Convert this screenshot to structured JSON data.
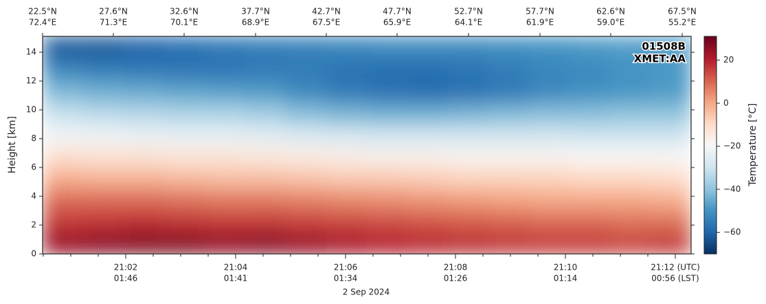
{
  "chart_data": {
    "type": "heatmap",
    "ylabel": "Height [km]",
    "xlabel": "2 Sep 2024",
    "colorbar_label": "Temperature [°C]",
    "annotations": [
      "01508B",
      "XMET:AA"
    ],
    "xlim": [
      0.4875,
      12.2875
    ],
    "ylim": [
      0,
      15.1
    ],
    "clim": [
      -70,
      31
    ],
    "colormap": [
      "#053061",
      "#2166ac",
      "#4393c3",
      "#92c5de",
      "#d1e5f0",
      "#f7f7f7",
      "#fddbc7",
      "#f4a582",
      "#d6604d",
      "#b2182b",
      "#67001f"
    ],
    "xticks": [
      {
        "value": 2,
        "label": "21:02"
      },
      {
        "value": 4,
        "label": "21:04"
      },
      {
        "value": 6,
        "label": "21:06"
      },
      {
        "value": 8,
        "label": "21:08"
      },
      {
        "value": 10,
        "label": "21:10"
      },
      {
        "value": 12,
        "label": "21:12 (UTC)"
      }
    ],
    "xticks_lst": [
      "01:46",
      "01:41",
      "01:34",
      "01:26",
      "01:14",
      "00:56 (LST)"
    ],
    "xminor": [
      0.5,
      1,
      1.5,
      2.5,
      3,
      3.5,
      4.5,
      5,
      5.5,
      6.5,
      7,
      7.5,
      8.5,
      9,
      9.5,
      10.5,
      11,
      11.5
    ],
    "top_ticks": [
      {
        "value": 0.4875,
        "label": "22.5°N"
      },
      {
        "value": 1.775,
        "label": "27.6°N"
      },
      {
        "value": 3.0625,
        "label": "32.6°N"
      },
      {
        "value": 4.3625,
        "label": "37.7°N"
      },
      {
        "value": 5.65,
        "label": "42.7°N"
      },
      {
        "value": 6.9375,
        "label": "47.7°N"
      },
      {
        "value": 8.2375,
        "label": "52.7°N"
      },
      {
        "value": 9.5375,
        "label": "57.7°N"
      },
      {
        "value": 10.825,
        "label": "62.6°N"
      },
      {
        "value": 12.125,
        "label": "67.5°N"
      }
    ],
    "top_ticks_lon": [
      "72.4°E",
      "71.3°E",
      "70.1°E",
      "68.9°E",
      "67.5°E",
      "65.9°E",
      "64.1°E",
      "61.9°E",
      "59.0°E",
      "55.2°E"
    ],
    "yticks": [
      0,
      2,
      4,
      6,
      8,
      10,
      12,
      14
    ],
    "cticks": [
      {
        "value": 20,
        "label": "20"
      },
      {
        "value": 0,
        "label": "0"
      },
      {
        "value": -20,
        "label": "−20"
      },
      {
        "value": -40,
        "label": "−40"
      },
      {
        "value": -60,
        "label": "−60"
      }
    ],
    "xbins": [
      0.4875,
      1.225,
      1.9625,
      2.7,
      3.4375,
      4.175,
      4.9125,
      5.65,
      6.3875,
      7.125,
      7.8625,
      8.6,
      9.3375,
      10.075,
      10.8125,
      11.55,
      12.2875
    ],
    "ybins": [
      0,
      1.5,
      3,
      4.5,
      6,
      7.5,
      9,
      10.5,
      12,
      13.5,
      15.1
    ],
    "z": [
      [
        24,
        26,
        27,
        27,
        25,
        26,
        24,
        22,
        20,
        19,
        18,
        17,
        16,
        16,
        15,
        16
      ],
      [
        16,
        17,
        18,
        17,
        16,
        16,
        15,
        14,
        13,
        12,
        11,
        10,
        9,
        9,
        8,
        8
      ],
      [
        9,
        9,
        9,
        8,
        7,
        7,
        6,
        5,
        4,
        3,
        2,
        1,
        0,
        0,
        0,
        -1
      ],
      [
        -1,
        -2,
        -2,
        -3,
        -4,
        -4,
        -5,
        -6,
        -6,
        -7,
        -8,
        -8,
        -8,
        -9,
        -9,
        -10
      ],
      [
        -11,
        -12,
        -12,
        -13,
        -13,
        -14,
        -15,
        -16,
        -17,
        -17,
        -18,
        -18,
        -18,
        -19,
        -19,
        -19
      ],
      [
        -21,
        -22,
        -23,
        -24,
        -24,
        -25,
        -27,
        -28,
        -29,
        -29,
        -29,
        -29,
        -29,
        -30,
        -30,
        -30
      ],
      [
        -31,
        -33,
        -34,
        -35,
        -35,
        -37,
        -41,
        -43,
        -44,
        -44,
        -43,
        -42,
        -41,
        -41,
        -40,
        -40
      ],
      [
        -42,
        -44,
        -45,
        -46,
        -47,
        -48,
        -52,
        -55,
        -57,
        -58,
        -57,
        -55,
        -52,
        -50,
        -49,
        -48
      ],
      [
        -52,
        -54,
        -55,
        -56,
        -56,
        -55,
        -55,
        -57,
        -58,
        -58,
        -57,
        -55,
        -53,
        -52,
        -50,
        -49
      ],
      [
        -62,
        -62,
        -60,
        -58,
        -56,
        -55,
        -54,
        -53,
        -52,
        -52,
        -52,
        -51,
        -50,
        -49,
        -48,
        -47
      ]
    ]
  }
}
